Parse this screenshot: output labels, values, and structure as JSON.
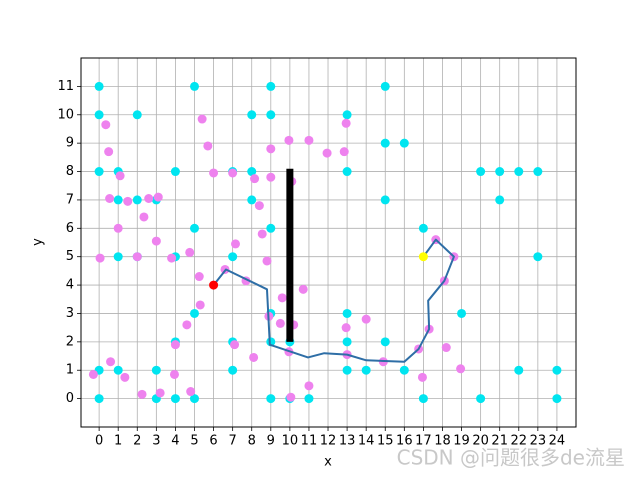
{
  "chart_data": {
    "type": "scatter",
    "xlabel": "x",
    "ylabel": "y",
    "xlim": [
      -0.95,
      25.0
    ],
    "ylim": [
      -1,
      12
    ],
    "xticks": [
      0,
      1,
      2,
      3,
      4,
      5,
      6,
      7,
      8,
      9,
      10,
      11,
      12,
      13,
      14,
      15,
      16,
      17,
      18,
      19,
      20,
      21,
      22,
      23,
      24
    ],
    "yticks": [
      0,
      1,
      2,
      3,
      4,
      5,
      6,
      7,
      8,
      9,
      10,
      11
    ],
    "grid": true,
    "watermark": "CSDN @问题很多de流星",
    "series": [
      {
        "type": "scatter",
        "color": "#00e5f0",
        "x": [
          0,
          0,
          0,
          0,
          0,
          1,
          1,
          1,
          1,
          2,
          2,
          2,
          3,
          3,
          3,
          4,
          4,
          4,
          4,
          5,
          5,
          5,
          5,
          7,
          7,
          7,
          7,
          8,
          8,
          8,
          9,
          9,
          9,
          9,
          9,
          9,
          10,
          10,
          11,
          13,
          13,
          13,
          13,
          13,
          14,
          15,
          15,
          15,
          15,
          16,
          16,
          17,
          17,
          19,
          20,
          20,
          21,
          21,
          22,
          22,
          23,
          23,
          24,
          24
        ],
        "values": [
          11,
          10,
          8,
          1,
          0,
          8,
          7,
          5,
          1,
          10,
          7,
          5,
          7,
          1,
          0,
          8,
          5,
          2,
          0,
          11,
          6,
          3,
          0,
          8,
          5,
          2,
          1,
          10,
          8,
          7,
          11,
          10,
          6,
          3,
          2,
          0,
          2,
          0,
          0,
          10,
          8,
          3,
          2,
          1,
          1,
          11,
          9,
          7,
          2,
          9,
          1,
          6,
          0,
          3,
          8,
          0,
          8,
          7,
          8,
          1,
          8,
          5,
          1,
          0
        ]
      },
      {
        "type": "scatter",
        "color": "#ee82ee",
        "x": [
          -0.3,
          0.05,
          0.35,
          0.5,
          0.55,
          0.6,
          1.0,
          1.1,
          1.35,
          1.5,
          2.0,
          2.25,
          2.35,
          2.6,
          3.0,
          3.1,
          3.2,
          3.8,
          3.95,
          4.0,
          4.6,
          4.75,
          4.8,
          5.25,
          5.3,
          5.4,
          5.7,
          6.0,
          6.6,
          7.0,
          7.1,
          7.15,
          7.7,
          8.1,
          8.15,
          8.4,
          8.55,
          8.8,
          8.9,
          9.0,
          9.0,
          9.5,
          9.6,
          9.95,
          9.95,
          10.1,
          10.05,
          10.2,
          10.7,
          11.0,
          11.0,
          11.95,
          12.85,
          12.95,
          12.95,
          13.0,
          14.0,
          14.9,
          16.75,
          16.95,
          17.3,
          17.65,
          18.1,
          18.2,
          18.6,
          18.95
        ],
        "values": [
          0.85,
          4.95,
          9.65,
          8.7,
          7.05,
          1.3,
          6.0,
          7.85,
          0.75,
          6.95,
          5.0,
          0.15,
          6.4,
          7.05,
          5.55,
          7.1,
          0.2,
          4.95,
          0.85,
          1.9,
          2.6,
          5.15,
          0.25,
          4.3,
          3.3,
          9.85,
          8.9,
          7.95,
          4.55,
          7.95,
          1.9,
          5.45,
          4.15,
          1.45,
          7.75,
          6.8,
          5.8,
          4.85,
          2.9,
          8.8,
          7.8,
          2.65,
          3.55,
          1.65,
          9.1,
          7.65,
          0.05,
          2.6,
          3.85,
          9.1,
          0.45,
          8.65,
          8.7,
          9.7,
          2.5,
          1.55,
          2.8,
          1.3,
          1.75,
          0.75,
          2.45,
          5.6,
          4.15,
          1.8,
          5.0,
          1.05
        ]
      },
      {
        "type": "line",
        "color": "#000000",
        "linewidth": 7,
        "x": [
          10,
          10
        ],
        "values": [
          2,
          8.1
        ]
      },
      {
        "type": "line",
        "color": "#2e6ea6",
        "linewidth": 2,
        "x": [
          6,
          6.65,
          8.8,
          8.95,
          10.95,
          11.8,
          13,
          14,
          16,
          16.75,
          17.3,
          17.25,
          18.1,
          18.6,
          17.65,
          17
        ],
        "values": [
          4,
          4.55,
          3.85,
          1.9,
          1.45,
          1.6,
          1.55,
          1.35,
          1.3,
          1.75,
          2.45,
          3.45,
          4.15,
          5.0,
          5.6,
          5
        ]
      },
      {
        "type": "scatter",
        "color": "#ff0000",
        "x": [
          6
        ],
        "values": [
          4
        ]
      },
      {
        "type": "scatter",
        "color": "#ffff00",
        "x": [
          17
        ],
        "values": [
          5
        ]
      }
    ]
  }
}
